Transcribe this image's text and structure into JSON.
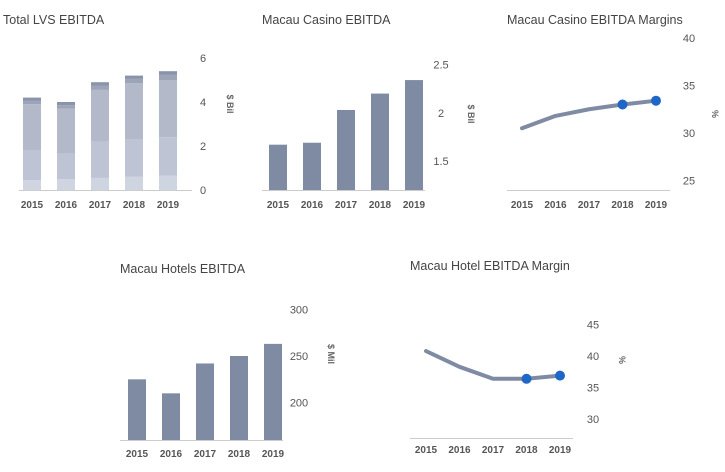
{
  "palette": {
    "bar": "#7f8ba3",
    "line": "#7f8ba3",
    "marker": "#1f66c6",
    "axis": "#cccccc",
    "stack": [
      "#ced4e0",
      "#bec4d3",
      "#b3b9c9",
      "#9ca4b7",
      "#8a93a9"
    ]
  },
  "chart_data": [
    {
      "id": "total-lvs",
      "type": "bar",
      "stacked": true,
      "title": "Total LVS EBITDA",
      "ylabel": "$ Bil",
      "categories": [
        "2015",
        "2016",
        "2017",
        "2018",
        "2019"
      ],
      "yticks": [
        "0",
        "2",
        "4",
        "6"
      ],
      "ylim": [
        0,
        6
      ],
      "series": [
        {
          "values": [
            0.45,
            0.5,
            0.55,
            0.6,
            0.65
          ]
        },
        {
          "values": [
            1.35,
            1.15,
            1.65,
            1.7,
            1.75
          ]
        },
        {
          "values": [
            2.1,
            2.05,
            2.35,
            2.55,
            2.6
          ]
        },
        {
          "values": [
            0.15,
            0.15,
            0.2,
            0.2,
            0.25
          ]
        },
        {
          "values": [
            0.15,
            0.15,
            0.15,
            0.15,
            0.15
          ]
        }
      ]
    },
    {
      "id": "macau-casino",
      "type": "bar",
      "title": "Macau Casino EBITDA",
      "ylabel": "$ Bil",
      "categories": [
        "2015",
        "2016",
        "2017",
        "2018",
        "2019"
      ],
      "yticks": [
        "1.5",
        "2",
        "2.5"
      ],
      "ylim": [
        1.2,
        2.6
      ],
      "values": [
        1.67,
        1.69,
        2.03,
        2.2,
        2.34
      ]
    },
    {
      "id": "macau-casino-margins",
      "type": "line",
      "title": "Macau Casino EBITDA Margins",
      "ylabel": "%",
      "categories": [
        "2015",
        "2016",
        "2017",
        "2018",
        "2019"
      ],
      "yticks": [
        "25",
        "30",
        "35",
        "40"
      ],
      "ylim": [
        24,
        40
      ],
      "values": [
        30.5,
        31.8,
        32.5,
        33,
        33.4
      ],
      "highlight_from": 3
    },
    {
      "id": "macau-hotels",
      "type": "bar",
      "title": "Macau Hotels EBITDA",
      "ylabel": "$ Mil",
      "categories": [
        "2015",
        "2016",
        "2017",
        "2018",
        "2019"
      ],
      "yticks": [
        "200",
        "250",
        "300"
      ],
      "ylim": [
        160,
        310
      ],
      "values": [
        225,
        210,
        242,
        250,
        263
      ]
    },
    {
      "id": "macau-hotel-margin",
      "type": "line",
      "title": "Macau Hotel EBITDA Margin",
      "ylabel": "%",
      "categories": [
        "2015",
        "2016",
        "2017",
        "2018",
        "2019"
      ],
      "yticks": [
        "30",
        "35",
        "40",
        "45"
      ],
      "ylim": [
        27,
        47
      ],
      "values": [
        40.8,
        38.3,
        36.4,
        36.4,
        36.9
      ],
      "highlight_from": 3
    }
  ]
}
